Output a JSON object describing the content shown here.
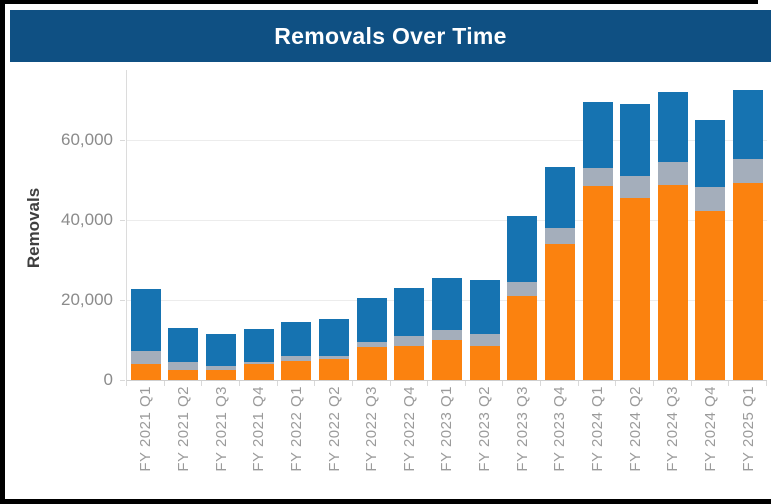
{
  "banner": {
    "title": "Removals Over Time",
    "background": "#0F5083",
    "text_color": "#FFFFFF"
  },
  "frame": {
    "border_color": "#000000",
    "background": "#FFFFFF"
  },
  "axis_styles": {
    "tick_label_color": "#8B8B8B",
    "category_label_color": "#9B9B9B",
    "gridline_color": "#ECECEC",
    "axis_line_color": "#CFCFCF"
  },
  "chart_data": {
    "type": "bar",
    "stacked": true,
    "title": "Removals Over Time",
    "xlabel": "",
    "ylabel": "Removals",
    "legend": "none",
    "grid": true,
    "ylim": [
      0,
      77500
    ],
    "y_ticks": [
      {
        "value": 0,
        "label": "0"
      },
      {
        "value": 20000,
        "label": "20,000"
      },
      {
        "value": 40000,
        "label": "40,000"
      },
      {
        "value": 60000,
        "label": "60,000"
      }
    ],
    "categories": [
      "FY 2021 Q1",
      "FY 2021 Q2",
      "FY 2021 Q3",
      "FY 2021 Q4",
      "FY 2022 Q1",
      "FY 2022 Q2",
      "FY 2022 Q3",
      "FY 2022 Q4",
      "FY 2023 Q1",
      "FY 2023 Q2",
      "FY 2023 Q3",
      "FY 2023 Q4",
      "FY 2024 Q1",
      "FY 2024 Q2",
      "FY 2024 Q3",
      "FY 2024 Q4",
      "FY 2025 Q1"
    ],
    "series": [
      {
        "name": "orange-bottom-segment",
        "color": "#FB820F",
        "values": [
          3900,
          2600,
          2600,
          3900,
          4800,
          5200,
          8200,
          8600,
          9900,
          8400,
          21000,
          34100,
          48600,
          45600,
          48800,
          42200,
          49200
        ]
      },
      {
        "name": "gray-middle-segment",
        "color": "#A4AEBB",
        "values": [
          3450,
          1950,
          900,
          700,
          1250,
          700,
          1200,
          2400,
          2600,
          3150,
          3550,
          3800,
          4400,
          5350,
          5700,
          5950,
          6100
        ]
      },
      {
        "name": "blue-top-segment",
        "color": "#1673B1",
        "values": [
          15350,
          8500,
          7900,
          8100,
          8450,
          9300,
          11200,
          11900,
          13100,
          13450,
          16350,
          15400,
          16600,
          18150,
          17400,
          16950,
          17300
        ]
      }
    ],
    "totals": [
      22700,
      13050,
      11400,
      12700,
      14500,
      15200,
      20600,
      22900,
      25600,
      25000,
      40900,
      53300,
      69600,
      69100,
      71900,
      65100,
      72600
    ]
  }
}
